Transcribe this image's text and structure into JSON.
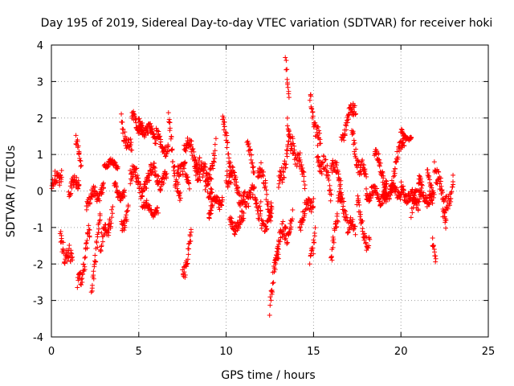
{
  "chart_data": {
    "type": "scatter",
    "title": "Day 195 of 2019, Sidereal Day-to-day VTEC variation (SDTVAR) for receiver hoki",
    "xlabel": "GPS time / hours",
    "ylabel": "SDTVAR / TECUs",
    "xlim": [
      0,
      25
    ],
    "ylim": [
      -4,
      4
    ],
    "xticks": [
      0,
      5,
      10,
      15,
      20,
      25
    ],
    "yticks": [
      -4,
      -3,
      -2,
      -1,
      0,
      1,
      2,
      3,
      4
    ],
    "grid": true,
    "marker": "+",
    "color": "#ff0000",
    "series": [
      {
        "name": "SDTVAR",
        "segments": [
          {
            "t0": 0.0,
            "t1": 0.6,
            "y0": 0.0,
            "y1": 0.6,
            "spread": 0.35
          },
          {
            "t0": 0.5,
            "t1": 1.2,
            "y0": -1.2,
            "y1": -2.1,
            "spread": 0.45
          },
          {
            "t0": 1.0,
            "t1": 1.6,
            "y0": 0.0,
            "y1": 0.3,
            "spread": 0.3
          },
          {
            "t0": 1.4,
            "t1": 1.7,
            "y0": 1.4,
            "y1": 0.6,
            "spread": 0.25
          },
          {
            "t0": 1.5,
            "t1": 2.2,
            "y0": -2.7,
            "y1": -1.2,
            "spread": 0.45
          },
          {
            "t0": 2.0,
            "t1": 3.0,
            "y0": -0.3,
            "y1": 0.1,
            "spread": 0.3
          },
          {
            "t0": 2.3,
            "t1": 2.8,
            "y0": -2.5,
            "y1": -0.8,
            "spread": 0.4
          },
          {
            "t0": 2.8,
            "t1": 3.5,
            "y0": -1.6,
            "y1": -0.5,
            "spread": 0.4
          },
          {
            "t0": 3.0,
            "t1": 3.8,
            "y0": 0.8,
            "y1": 0.7,
            "spread": 0.15
          },
          {
            "t0": 3.6,
            "t1": 4.2,
            "y0": 0.1,
            "y1": -0.2,
            "spread": 0.25
          },
          {
            "t0": 4.0,
            "t1": 4.4,
            "y0": -1.0,
            "y1": -0.5,
            "spread": 0.3
          },
          {
            "t0": 4.0,
            "t1": 4.6,
            "y0": 1.9,
            "y1": 1.0,
            "spread": 0.35
          },
          {
            "t0": 4.5,
            "t1": 5.5,
            "y0": 0.5,
            "y1": 0.0,
            "spread": 0.45
          },
          {
            "t0": 4.6,
            "t1": 5.2,
            "y0": 2.0,
            "y1": 1.7,
            "spread": 0.25
          },
          {
            "t0": 5.0,
            "t1": 6.0,
            "y0": 1.8,
            "y1": 1.5,
            "spread": 0.25
          },
          {
            "t0": 5.2,
            "t1": 6.1,
            "y0": -0.4,
            "y1": -0.6,
            "spread": 0.2
          },
          {
            "t0": 5.5,
            "t1": 6.6,
            "y0": 0.6,
            "y1": 0.2,
            "spread": 0.35
          },
          {
            "t0": 6.0,
            "t1": 6.7,
            "y0": 1.5,
            "y1": 1.0,
            "spread": 0.3
          },
          {
            "t0": 6.7,
            "t1": 7.4,
            "y0": 1.8,
            "y1": -0.4,
            "spread": 0.45
          },
          {
            "t0": 7.2,
            "t1": 7.9,
            "y0": 0.8,
            "y1": 0.2,
            "spread": 0.4
          },
          {
            "t0": 7.5,
            "t1": 8.0,
            "y0": -2.3,
            "y1": -1.3,
            "spread": 0.35
          },
          {
            "t0": 7.6,
            "t1": 8.5,
            "y0": 1.4,
            "y1": 0.7,
            "spread": 0.35
          },
          {
            "t0": 8.2,
            "t1": 9.2,
            "y0": 0.8,
            "y1": 0.0,
            "spread": 0.45
          },
          {
            "t0": 8.8,
            "t1": 9.4,
            "y0": 0.0,
            "y1": 1.2,
            "spread": 0.4
          },
          {
            "t0": 9.0,
            "t1": 9.8,
            "y0": -0.5,
            "y1": -0.2,
            "spread": 0.3
          },
          {
            "t0": 9.8,
            "t1": 10.3,
            "y0": 1.9,
            "y1": 0.6,
            "spread": 0.35
          },
          {
            "t0": 10.0,
            "t1": 11.0,
            "y0": 0.6,
            "y1": -0.2,
            "spread": 0.45
          },
          {
            "t0": 10.2,
            "t1": 11.0,
            "y0": -1.0,
            "y1": -0.8,
            "spread": 0.3
          },
          {
            "t0": 11.0,
            "t1": 12.0,
            "y0": 0.0,
            "y1": -0.4,
            "spread": 0.45
          },
          {
            "t0": 11.2,
            "t1": 11.6,
            "y0": 1.2,
            "y1": 0.6,
            "spread": 0.25
          },
          {
            "t0": 11.8,
            "t1": 12.6,
            "y0": 0.8,
            "y1": -0.6,
            "spread": 0.4
          },
          {
            "t0": 12.0,
            "t1": 12.6,
            "y0": -1.0,
            "y1": -0.6,
            "spread": 0.3
          },
          {
            "t0": 12.5,
            "t1": 13.0,
            "y0": -3.0,
            "y1": -1.6,
            "spread": 0.45
          },
          {
            "t0": 12.8,
            "t1": 13.8,
            "y0": -1.6,
            "y1": -0.8,
            "spread": 0.45
          },
          {
            "t0": 13.0,
            "t1": 13.6,
            "y0": 0.0,
            "y1": 1.4,
            "spread": 0.4
          },
          {
            "t0": 13.4,
            "t1": 13.6,
            "y0": 3.6,
            "y1": 2.6,
            "spread": 0.3
          },
          {
            "t0": 13.5,
            "t1": 13.8,
            "y0": 2.0,
            "y1": 1.0,
            "spread": 0.35
          },
          {
            "t0": 13.8,
            "t1": 14.5,
            "y0": 1.4,
            "y1": 0.2,
            "spread": 0.4
          },
          {
            "t0": 14.2,
            "t1": 15.0,
            "y0": -0.8,
            "y1": -0.2,
            "spread": 0.35
          },
          {
            "t0": 14.8,
            "t1": 15.1,
            "y0": -2.0,
            "y1": -1.0,
            "spread": 0.35
          },
          {
            "t0": 14.8,
            "t1": 15.4,
            "y0": 2.5,
            "y1": 1.2,
            "spread": 0.35
          },
          {
            "t0": 15.2,
            "t1": 16.0,
            "y0": 1.2,
            "y1": 0.0,
            "spread": 0.45
          },
          {
            "t0": 16.0,
            "t1": 16.4,
            "y0": -1.8,
            "y1": -0.8,
            "spread": 0.4
          },
          {
            "t0": 16.0,
            "t1": 16.6,
            "y0": 0.8,
            "y1": 0.2,
            "spread": 0.35
          },
          {
            "t0": 16.4,
            "t1": 17.4,
            "y0": -0.2,
            "y1": -1.2,
            "spread": 0.4
          },
          {
            "t0": 16.6,
            "t1": 17.4,
            "y0": 1.5,
            "y1": 2.4,
            "spread": 0.3
          },
          {
            "t0": 17.2,
            "t1": 18.0,
            "y0": 1.4,
            "y1": 0.2,
            "spread": 0.4
          },
          {
            "t0": 17.5,
            "t1": 18.2,
            "y0": -0.4,
            "y1": -1.6,
            "spread": 0.35
          },
          {
            "t0": 18.0,
            "t1": 19.2,
            "y0": 0.0,
            "y1": -0.2,
            "spread": 0.3
          },
          {
            "t0": 18.5,
            "t1": 19.2,
            "y0": 1.0,
            "y1": 0.2,
            "spread": 0.3
          },
          {
            "t0": 19.0,
            "t1": 20.0,
            "y0": -0.1,
            "y1": 0.0,
            "spread": 0.25
          },
          {
            "t0": 19.4,
            "t1": 20.2,
            "y0": 0.2,
            "y1": 1.5,
            "spread": 0.3
          },
          {
            "t0": 20.0,
            "t1": 20.6,
            "y0": 1.6,
            "y1": 1.4,
            "spread": 0.12
          },
          {
            "t0": 20.0,
            "t1": 21.0,
            "y0": 0.0,
            "y1": -0.3,
            "spread": 0.3
          },
          {
            "t0": 20.6,
            "t1": 21.2,
            "y0": -0.6,
            "y1": 0.2,
            "spread": 0.35
          },
          {
            "t0": 21.0,
            "t1": 21.8,
            "y0": 0.2,
            "y1": -0.4,
            "spread": 0.3
          },
          {
            "t0": 21.5,
            "t1": 21.9,
            "y0": 0.8,
            "y1": -0.4,
            "spread": 0.35
          },
          {
            "t0": 21.8,
            "t1": 22.0,
            "y0": -1.4,
            "y1": -1.8,
            "spread": 0.2
          },
          {
            "t0": 21.9,
            "t1": 22.6,
            "y0": 0.8,
            "y1": -0.8,
            "spread": 0.45
          },
          {
            "t0": 22.4,
            "t1": 23.0,
            "y0": -0.8,
            "y1": 0.4,
            "spread": 0.4
          }
        ]
      }
    ]
  }
}
